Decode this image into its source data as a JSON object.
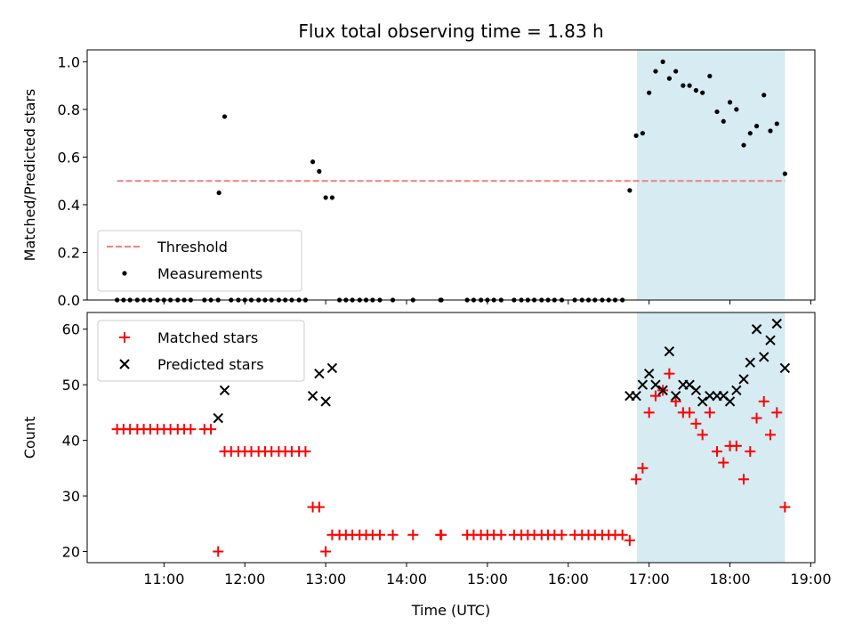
{
  "title": "Flux total observing time = 1.83 h",
  "chart_data": [
    {
      "type": "scatter",
      "panel": "top",
      "ylabel": "Matched/Predicted stars",
      "ylim": [
        0,
        1.05
      ],
      "yticks": [
        0.0,
        0.2,
        0.4,
        0.6,
        0.8,
        1.0
      ],
      "ytick_labels": [
        "0.0",
        "0.2",
        "0.4",
        "0.6",
        "0.8",
        "1.0"
      ],
      "x_unit": "hours UTC",
      "xlim": [
        10.05,
        19.05
      ],
      "shaded_interval": [
        16.85,
        18.68
      ],
      "shade_color": "#add8e6",
      "threshold": {
        "name": "Threshold",
        "value": 0.5,
        "x_range": [
          10.42,
          18.68
        ],
        "color": "#f08080",
        "style": "dashed"
      },
      "series": [
        {
          "name": "Measurements",
          "color": "#000000",
          "marker": "dot",
          "points": [
            [
              10.42,
              0
            ],
            [
              10.5,
              0
            ],
            [
              10.58,
              0
            ],
            [
              10.67,
              0
            ],
            [
              10.75,
              0
            ],
            [
              10.83,
              0
            ],
            [
              10.92,
              0
            ],
            [
              11.0,
              0
            ],
            [
              11.08,
              0
            ],
            [
              11.17,
              0
            ],
            [
              11.25,
              0
            ],
            [
              11.33,
              0
            ],
            [
              11.5,
              0
            ],
            [
              11.58,
              0
            ],
            [
              11.67,
              0
            ],
            [
              11.68,
              0.45
            ],
            [
              11.75,
              0.77
            ],
            [
              11.83,
              0
            ],
            [
              11.92,
              0
            ],
            [
              12.0,
              0
            ],
            [
              12.08,
              0
            ],
            [
              12.17,
              0
            ],
            [
              12.25,
              0
            ],
            [
              12.33,
              0
            ],
            [
              12.42,
              0
            ],
            [
              12.5,
              0
            ],
            [
              12.58,
              0
            ],
            [
              12.67,
              0
            ],
            [
              12.75,
              0
            ],
            [
              12.84,
              0.58
            ],
            [
              12.92,
              0.54
            ],
            [
              13.0,
              0.43
            ],
            [
              13.08,
              0.43
            ],
            [
              13.17,
              0
            ],
            [
              13.25,
              0
            ],
            [
              13.33,
              0
            ],
            [
              13.42,
              0
            ],
            [
              13.5,
              0
            ],
            [
              13.58,
              0
            ],
            [
              13.67,
              0
            ],
            [
              13.83,
              0
            ],
            [
              14.08,
              0
            ],
            [
              14.42,
              0
            ],
            [
              14.43,
              0
            ],
            [
              14.75,
              0
            ],
            [
              14.83,
              0
            ],
            [
              14.92,
              0
            ],
            [
              15.0,
              0
            ],
            [
              15.08,
              0
            ],
            [
              15.17,
              0
            ],
            [
              15.33,
              0
            ],
            [
              15.42,
              0
            ],
            [
              15.5,
              0
            ],
            [
              15.58,
              0
            ],
            [
              15.67,
              0
            ],
            [
              15.75,
              0
            ],
            [
              15.83,
              0
            ],
            [
              15.92,
              0
            ],
            [
              16.08,
              0
            ],
            [
              16.17,
              0
            ],
            [
              16.25,
              0
            ],
            [
              16.33,
              0
            ],
            [
              16.42,
              0
            ],
            [
              16.5,
              0
            ],
            [
              16.58,
              0
            ],
            [
              16.67,
              0
            ],
            [
              16.76,
              0.46
            ],
            [
              16.84,
              0.69
            ],
            [
              16.92,
              0.7
            ],
            [
              17.0,
              0.87
            ],
            [
              17.08,
              0.96
            ],
            [
              17.17,
              1.0
            ],
            [
              17.25,
              0.93
            ],
            [
              17.33,
              0.96
            ],
            [
              17.42,
              0.9
            ],
            [
              17.5,
              0.9
            ],
            [
              17.58,
              0.88
            ],
            [
              17.66,
              0.87
            ],
            [
              17.75,
              0.94
            ],
            [
              17.84,
              0.79
            ],
            [
              17.92,
              0.75
            ],
            [
              18.0,
              0.83
            ],
            [
              18.08,
              0.8
            ],
            [
              18.17,
              0.65
            ],
            [
              18.25,
              0.7
            ],
            [
              18.33,
              0.73
            ],
            [
              18.42,
              0.86
            ],
            [
              18.5,
              0.71
            ],
            [
              18.58,
              0.74
            ],
            [
              18.68,
              0.53
            ]
          ]
        }
      ],
      "legend": {
        "placement": "lower-left",
        "entries": [
          "Threshold",
          "Measurements"
        ]
      }
    },
    {
      "type": "scatter",
      "panel": "bottom",
      "ylabel": "Count",
      "xlabel": "Time (UTC)",
      "ylim": [
        18,
        63
      ],
      "yticks": [
        20,
        30,
        40,
        50,
        60
      ],
      "ytick_labels": [
        "20",
        "30",
        "40",
        "50",
        "60"
      ],
      "x_unit": "hours UTC",
      "xlim": [
        10.05,
        19.05
      ],
      "xticks": [
        11,
        12,
        13,
        14,
        15,
        16,
        17,
        18,
        19
      ],
      "xtick_labels": [
        "11:00",
        "12:00",
        "13:00",
        "14:00",
        "15:00",
        "16:00",
        "17:00",
        "18:00",
        "19:00"
      ],
      "shaded_interval": [
        16.85,
        18.68
      ],
      "shade_color": "#add8e6",
      "series": [
        {
          "name": "Matched stars",
          "color": "#ff0000",
          "marker": "plus",
          "points": [
            [
              10.42,
              42
            ],
            [
              10.5,
              42
            ],
            [
              10.58,
              42
            ],
            [
              10.67,
              42
            ],
            [
              10.75,
              42
            ],
            [
              10.83,
              42
            ],
            [
              10.92,
              42
            ],
            [
              11.0,
              42
            ],
            [
              11.08,
              42
            ],
            [
              11.17,
              42
            ],
            [
              11.25,
              42
            ],
            [
              11.33,
              42
            ],
            [
              11.5,
              42
            ],
            [
              11.58,
              42
            ],
            [
              11.67,
              20
            ],
            [
              11.75,
              38
            ],
            [
              11.83,
              38
            ],
            [
              11.92,
              38
            ],
            [
              12.0,
              38
            ],
            [
              12.08,
              38
            ],
            [
              12.17,
              38
            ],
            [
              12.25,
              38
            ],
            [
              12.33,
              38
            ],
            [
              12.42,
              38
            ],
            [
              12.5,
              38
            ],
            [
              12.58,
              38
            ],
            [
              12.67,
              38
            ],
            [
              12.75,
              38
            ],
            [
              12.84,
              28
            ],
            [
              12.92,
              28
            ],
            [
              13.0,
              20
            ],
            [
              13.08,
              23
            ],
            [
              13.17,
              23
            ],
            [
              13.25,
              23
            ],
            [
              13.33,
              23
            ],
            [
              13.42,
              23
            ],
            [
              13.5,
              23
            ],
            [
              13.58,
              23
            ],
            [
              13.67,
              23
            ],
            [
              13.83,
              23
            ],
            [
              14.08,
              23
            ],
            [
              14.42,
              23
            ],
            [
              14.43,
              23
            ],
            [
              14.75,
              23
            ],
            [
              14.83,
              23
            ],
            [
              14.92,
              23
            ],
            [
              15.0,
              23
            ],
            [
              15.08,
              23
            ],
            [
              15.17,
              23
            ],
            [
              15.33,
              23
            ],
            [
              15.42,
              23
            ],
            [
              15.5,
              23
            ],
            [
              15.58,
              23
            ],
            [
              15.67,
              23
            ],
            [
              15.75,
              23
            ],
            [
              15.83,
              23
            ],
            [
              15.92,
              23
            ],
            [
              16.08,
              23
            ],
            [
              16.17,
              23
            ],
            [
              16.25,
              23
            ],
            [
              16.33,
              23
            ],
            [
              16.42,
              23
            ],
            [
              16.5,
              23
            ],
            [
              16.58,
              23
            ],
            [
              16.67,
              23
            ],
            [
              16.76,
              22
            ],
            [
              16.84,
              33
            ],
            [
              16.92,
              35
            ],
            [
              17.0,
              45
            ],
            [
              17.08,
              48
            ],
            [
              17.17,
              49
            ],
            [
              17.25,
              52
            ],
            [
              17.33,
              47
            ],
            [
              17.42,
              45
            ],
            [
              17.5,
              45
            ],
            [
              17.58,
              43
            ],
            [
              17.66,
              41
            ],
            [
              17.75,
              45
            ],
            [
              17.84,
              38
            ],
            [
              17.92,
              36
            ],
            [
              18.0,
              39
            ],
            [
              18.08,
              39
            ],
            [
              18.17,
              33
            ],
            [
              18.25,
              38
            ],
            [
              18.33,
              44
            ],
            [
              18.42,
              47
            ],
            [
              18.5,
              41
            ],
            [
              18.58,
              45
            ],
            [
              18.68,
              28
            ]
          ]
        },
        {
          "name": "Predicted stars",
          "color": "#000000",
          "marker": "x",
          "points": [
            [
              11.67,
              44
            ],
            [
              11.75,
              49
            ],
            [
              12.84,
              48
            ],
            [
              12.92,
              52
            ],
            [
              13.0,
              47
            ],
            [
              13.08,
              53
            ],
            [
              16.76,
              48
            ],
            [
              16.84,
              48
            ],
            [
              16.92,
              50
            ],
            [
              17.0,
              52
            ],
            [
              17.08,
              50
            ],
            [
              17.17,
              49
            ],
            [
              17.25,
              56
            ],
            [
              17.33,
              48
            ],
            [
              17.42,
              50
            ],
            [
              17.5,
              50
            ],
            [
              17.58,
              49
            ],
            [
              17.66,
              47
            ],
            [
              17.75,
              48
            ],
            [
              17.84,
              48
            ],
            [
              17.92,
              48
            ],
            [
              18.0,
              47
            ],
            [
              18.08,
              49
            ],
            [
              18.17,
              51
            ],
            [
              18.25,
              54
            ],
            [
              18.33,
              60
            ],
            [
              18.42,
              55
            ],
            [
              18.5,
              58
            ],
            [
              18.58,
              61
            ],
            [
              18.68,
              53
            ]
          ]
        }
      ],
      "legend": {
        "placement": "upper-left",
        "entries": [
          "Matched stars",
          "Predicted stars"
        ]
      }
    }
  ]
}
